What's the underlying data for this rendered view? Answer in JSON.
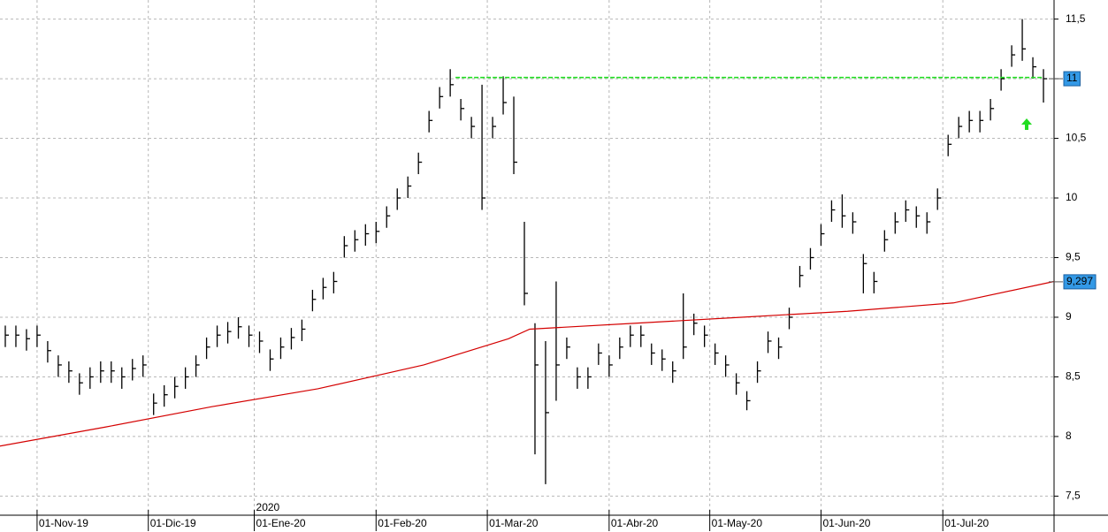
{
  "chart_data": {
    "type": "ohlc",
    "color": "#000000",
    "x": [
      1,
      3,
      5,
      7,
      9,
      11,
      13,
      15,
      17,
      19,
      21,
      23,
      25,
      27,
      29,
      31,
      33,
      35,
      37,
      39,
      41,
      43,
      45,
      47,
      49,
      51,
      53,
      55,
      57,
      59,
      61,
      63,
      65,
      67,
      69,
      71,
      73,
      75,
      77,
      79,
      81,
      83,
      85,
      87,
      89,
      91,
      93,
      95,
      97,
      99,
      101,
      103,
      105,
      107,
      109,
      111,
      113,
      115,
      117,
      119,
      121,
      123,
      125,
      127,
      129,
      131,
      133,
      135,
      137,
      139,
      141,
      143,
      145,
      147,
      149,
      151,
      153,
      155,
      157,
      159,
      161,
      163,
      165,
      167,
      169,
      171,
      173,
      175,
      177,
      179,
      181,
      183,
      185,
      187,
      189,
      191,
      193,
      195,
      197
    ],
    "high": [
      8.93,
      8.93,
      8.9,
      8.93,
      8.8,
      8.68,
      8.63,
      8.53,
      8.58,
      8.63,
      8.63,
      8.58,
      8.65,
      8.68,
      8.36,
      8.43,
      8.5,
      8.58,
      8.68,
      8.83,
      8.93,
      8.96,
      9.0,
      8.93,
      8.88,
      8.73,
      8.83,
      8.91,
      8.98,
      9.23,
      9.33,
      9.38,
      9.68,
      9.73,
      9.78,
      9.8,
      9.93,
      10.08,
      10.18,
      10.38,
      10.73,
      10.93,
      11.08,
      10.83,
      10.68,
      10.95,
      10.68,
      11.02,
      10.85,
      9.8,
      8.95,
      8.8,
      9.3,
      8.83,
      8.58,
      8.58,
      8.78,
      8.68,
      8.83,
      8.93,
      8.93,
      8.78,
      8.73,
      8.63,
      9.2,
      9.03,
      8.93,
      8.78,
      8.68,
      8.53,
      8.38,
      8.63,
      8.88,
      8.83,
      9.08,
      9.43,
      9.58,
      9.78,
      9.98,
      10.03,
      9.88,
      9.53,
      9.38,
      9.73,
      9.88,
      9.98,
      9.93,
      9.88,
      10.08,
      10.53,
      10.68,
      10.73,
      10.73,
      10.83,
      11.08,
      11.28,
      11.5,
      11.18,
      11.08
    ],
    "low": [
      8.75,
      8.75,
      8.72,
      8.75,
      8.62,
      8.5,
      8.45,
      8.35,
      8.4,
      8.45,
      8.45,
      8.4,
      8.47,
      8.5,
      8.18,
      8.25,
      8.32,
      8.4,
      8.5,
      8.65,
      8.75,
      8.78,
      8.82,
      8.75,
      8.7,
      8.55,
      8.65,
      8.73,
      8.8,
      9.05,
      9.15,
      9.2,
      9.5,
      9.55,
      9.6,
      9.62,
      9.75,
      9.9,
      10.0,
      10.2,
      10.55,
      10.75,
      10.85,
      10.65,
      10.5,
      9.9,
      10.5,
      10.7,
      10.2,
      9.1,
      7.85,
      7.6,
      8.3,
      8.65,
      8.4,
      8.4,
      8.6,
      8.5,
      8.65,
      8.75,
      8.75,
      8.6,
      8.55,
      8.45,
      8.65,
      8.85,
      8.75,
      8.6,
      8.5,
      8.35,
      8.22,
      8.45,
      8.7,
      8.65,
      8.9,
      9.25,
      9.4,
      9.6,
      9.8,
      9.75,
      9.7,
      9.2,
      9.2,
      9.55,
      9.7,
      9.8,
      9.75,
      9.7,
      9.9,
      10.35,
      10.5,
      10.55,
      10.55,
      10.65,
      10.9,
      11.1,
      11.15,
      11.0,
      10.8
    ],
    "close": [
      8.85,
      8.85,
      8.82,
      8.85,
      8.72,
      8.6,
      8.55,
      8.45,
      8.5,
      8.55,
      8.55,
      8.5,
      8.57,
      8.6,
      8.28,
      8.35,
      8.42,
      8.5,
      8.6,
      8.75,
      8.85,
      8.88,
      8.92,
      8.85,
      8.8,
      8.65,
      8.75,
      8.83,
      8.9,
      9.15,
      9.25,
      9.3,
      9.6,
      9.65,
      9.7,
      9.72,
      9.85,
      10.0,
      10.1,
      10.3,
      10.65,
      10.85,
      10.95,
      10.75,
      10.6,
      10.0,
      10.6,
      10.8,
      10.3,
      9.2,
      8.6,
      8.2,
      8.6,
      8.75,
      8.5,
      8.5,
      8.7,
      8.6,
      8.75,
      8.85,
      8.85,
      8.7,
      8.65,
      8.55,
      8.75,
      8.95,
      8.85,
      8.7,
      8.6,
      8.45,
      8.3,
      8.55,
      8.8,
      8.75,
      9.0,
      9.35,
      9.5,
      9.7,
      9.9,
      9.85,
      9.8,
      9.45,
      9.3,
      9.65,
      9.8,
      9.9,
      9.85,
      9.8,
      10.0,
      10.45,
      10.6,
      10.65,
      10.65,
      10.75,
      11.0,
      11.2,
      11.25,
      11.1,
      11.0
    ],
    "moving_average": {
      "color": "#d40000",
      "x": [
        0,
        20,
        40,
        60,
        80,
        96,
        100,
        120,
        140,
        160,
        180,
        199
      ],
      "values": [
        7.92,
        8.08,
        8.25,
        8.4,
        8.6,
        8.82,
        8.9,
        8.95,
        9.0,
        9.05,
        9.12,
        9.3
      ]
    },
    "resistance": {
      "color": "#22dd22",
      "value": 11.01,
      "x": [
        86,
        197
      ]
    },
    "price_markers": [
      11,
      {
        "value": 9.297,
        "label": "9,297"
      }
    ],
    "marker_color": "#3399e6",
    "annotations": [
      {
        "text": "2020",
        "x": 48
      }
    ],
    "xlim": [
      0,
      199
    ],
    "xticks": [
      {
        "value": 7,
        "label": "01-Nov-19"
      },
      {
        "value": 28,
        "label": "01-Dic-19"
      },
      {
        "value": 48,
        "label": "01-Ene-20"
      },
      {
        "value": 71,
        "label": "01-Feb-20"
      },
      {
        "value": 92,
        "label": "01-Mar-20"
      },
      {
        "value": 115,
        "label": "01-Abr-20"
      },
      {
        "value": 134,
        "label": "01-May-20"
      },
      {
        "value": 155,
        "label": "01-Jun-20"
      },
      {
        "value": 178,
        "label": "01-Jul-20"
      }
    ],
    "ylim": [
      7.34,
      11.66
    ],
    "yticks": [
      {
        "value": 7.5,
        "label": "7,5"
      },
      8,
      {
        "value": 8.5,
        "label": "8,5"
      },
      9,
      {
        "value": 9.5,
        "label": "9,5"
      },
      10,
      {
        "value": 10.5,
        "label": "10,5"
      },
      11,
      {
        "value": 11.5,
        "label": "11,5"
      }
    ],
    "grid": true
  }
}
